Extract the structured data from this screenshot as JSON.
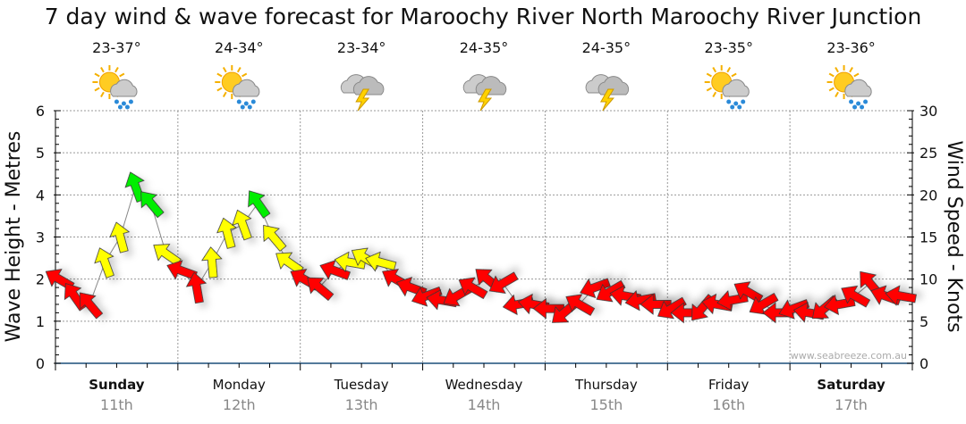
{
  "chart_data": {
    "type": "scatter",
    "title": "7 day wind & wave forecast for Maroochy River North Maroochy River Junction",
    "ylabel": "Wave Height - Metres",
    "y2label": "Wind Speed - Knots",
    "ylim": [
      0,
      6
    ],
    "y2lim": [
      0,
      30
    ],
    "yticks": [
      "0",
      "1",
      "2",
      "3",
      "4",
      "5",
      "6"
    ],
    "y2ticks": [
      "0",
      "5",
      "10",
      "15",
      "20",
      "25",
      "30"
    ],
    "grid": true,
    "watermark": "www.seabreeze.com.au",
    "days": [
      {
        "name": "Sunday",
        "date": "11th",
        "bold": true,
        "temp": "23-37°",
        "icon": "sun-cloud-rain"
      },
      {
        "name": "Monday",
        "date": "12th",
        "bold": false,
        "temp": "24-34°",
        "icon": "sun-cloud-rain"
      },
      {
        "name": "Tuesday",
        "date": "13th",
        "bold": false,
        "temp": "23-34°",
        "icon": "cloud-lightning"
      },
      {
        "name": "Wednesday",
        "date": "14th",
        "bold": false,
        "temp": "24-35°",
        "icon": "cloud-lightning"
      },
      {
        "name": "Thursday",
        "date": "15th",
        "bold": false,
        "temp": "24-35°",
        "icon": "cloud-lightning"
      },
      {
        "name": "Friday",
        "date": "16th",
        "bold": false,
        "temp": "23-35°",
        "icon": "sun-cloud-rain"
      },
      {
        "name": "Saturday",
        "date": "17th",
        "bold": true,
        "temp": "23-36°",
        "icon": "sun-cloud-rain"
      }
    ],
    "interval_hours": 3,
    "wind_knots": [
      10,
      8,
      7,
      12,
      15,
      21,
      19,
      13,
      11,
      9,
      12,
      15.5,
      16.5,
      19,
      15,
      12,
      10,
      9,
      11,
      12,
      12.5,
      12,
      10,
      9,
      8,
      7.5,
      8,
      9,
      10,
      9.5,
      7,
      7,
      6.5,
      6,
      7,
      9,
      8.5,
      8,
      7.5,
      7,
      6.5,
      6,
      6.5,
      7,
      7.5,
      8.5,
      7,
      6,
      6.5,
      6,
      6.5,
      7,
      8,
      9.5,
      8,
      8
    ],
    "wind_direction_deg": [
      -60,
      -35,
      -40,
      -20,
      -15,
      -20,
      -40,
      -55,
      -70,
      -10,
      -5,
      -15,
      -20,
      -35,
      -40,
      -55,
      -60,
      -50,
      -70,
      -80,
      -60,
      -75,
      -60,
      -70,
      -110,
      -80,
      -120,
      -60,
      -50,
      -120,
      -100,
      -80,
      -90,
      -130,
      -60,
      -110,
      -120,
      -80,
      -100,
      -90,
      -120,
      -90,
      -140,
      -80,
      -100,
      -60,
      -120,
      -90,
      -110,
      -80,
      -130,
      -100,
      -60,
      -40,
      -70,
      -80
    ],
    "colors": {
      "low": "#ff0000",
      "mid": "#ffff00",
      "high": "#00ee00"
    },
    "thresholds_knots": [
      12,
      19
    ]
  }
}
